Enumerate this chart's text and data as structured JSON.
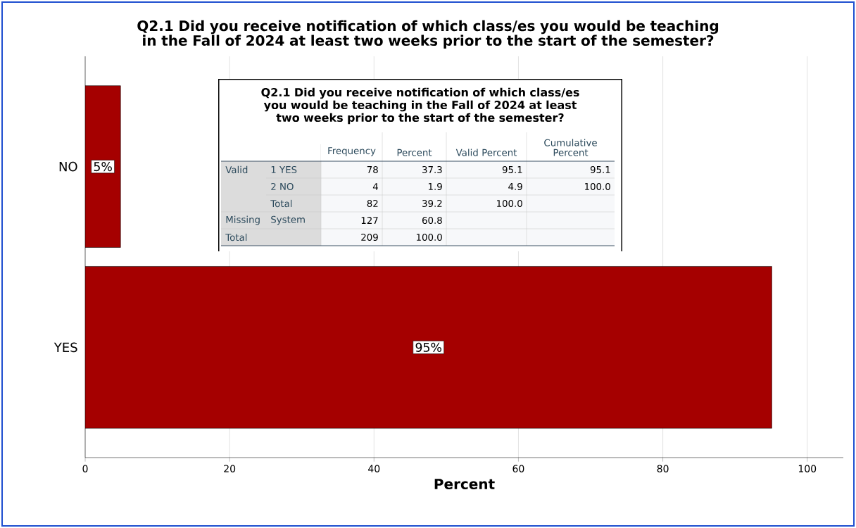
{
  "chart_data": {
    "type": "bar",
    "orientation": "horizontal",
    "title": "Q2.1 Did you receive notification of which class/es you would be teaching in the Fall of 2024 at least two weeks prior to the start of the semester?",
    "categories": [
      "NO",
      "YES"
    ],
    "values": [
      4.9,
      95.1
    ],
    "color": "#a50000",
    "value_labels": [
      "5%",
      "95%"
    ],
    "xlabel": "Percent",
    "xlim": [
      0,
      105
    ],
    "xticks": [
      0,
      20,
      40,
      60,
      80,
      100
    ],
    "grid": "x",
    "annotations": [
      "Q2.1 Did you receive notification of which class/es you would be teaching in the Fall of 2024 at least two weeks prior to the start of the semester?",
      "Frequency",
      "Percent",
      "Valid Percent",
      "Cumulative Percent",
      "Valid",
      "1 YES",
      "78",
      "37.3",
      "95.1",
      "95.1",
      "2 NO",
      "4",
      "1.9",
      "4.9",
      "100.0",
      "Total",
      "82",
      "39.2",
      "100.0",
      "Missing",
      "System",
      "127",
      "60.8",
      "Total",
      "209",
      "100.0"
    ]
  }
}
